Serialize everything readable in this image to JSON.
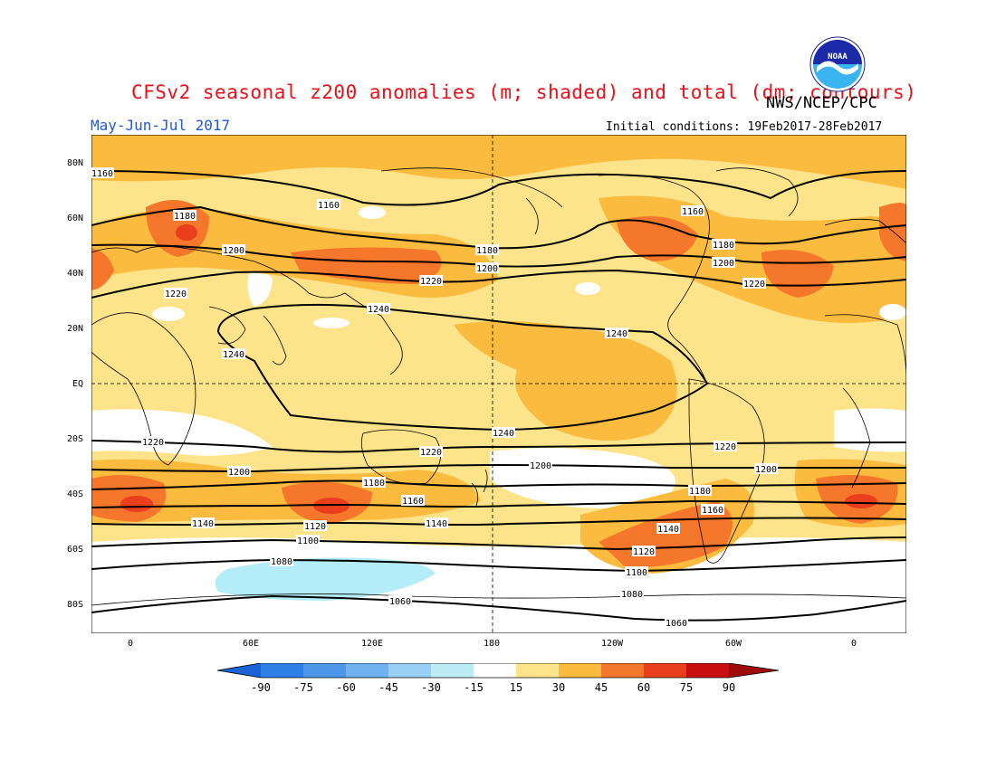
{
  "header": {
    "title": "CFSv2 seasonal z200 anomalies (m; shaded) and total (dm; contours)",
    "agency": "NWS/NCEP/CPC",
    "period": "May-Jun-Jul 2017",
    "initial_conditions": "Initial conditions: 19Feb2017-28Feb2017",
    "logo_text": "NOAA"
  },
  "map": {
    "lat_labels": [
      "80N",
      "60N",
      "40N",
      "20N",
      "EQ",
      "20S",
      "40S",
      "60S",
      "80S"
    ],
    "lon_labels": [
      "0",
      "60E",
      "120E",
      "180",
      "120W",
      "60W",
      "0"
    ],
    "contour_labels": [
      {
        "text": "1160"
      },
      {
        "text": "1160"
      },
      {
        "text": "1160"
      },
      {
        "text": "1180"
      },
      {
        "text": "1180"
      },
      {
        "text": "1180"
      },
      {
        "text": "1200"
      },
      {
        "text": "1200"
      },
      {
        "text": "1200"
      },
      {
        "text": "1220"
      },
      {
        "text": "1220"
      },
      {
        "text": "1220"
      },
      {
        "text": "1240"
      },
      {
        "text": "1240"
      },
      {
        "text": "1240"
      },
      {
        "text": "1240"
      },
      {
        "text": "1220"
      },
      {
        "text": "1220"
      },
      {
        "text": "1220"
      },
      {
        "text": "1200"
      },
      {
        "text": "1200"
      },
      {
        "text": "1200"
      },
      {
        "text": "1180"
      },
      {
        "text": "1180"
      },
      {
        "text": "1160"
      },
      {
        "text": "1160"
      },
      {
        "text": "1140"
      },
      {
        "text": "1140"
      },
      {
        "text": "1140"
      },
      {
        "text": "1120"
      },
      {
        "text": "1120"
      },
      {
        "text": "1100"
      },
      {
        "text": "1100"
      },
      {
        "text": "1080"
      },
      {
        "text": "1080"
      },
      {
        "text": "1060"
      },
      {
        "text": "1060"
      }
    ],
    "colors": {
      "c15_30": "#fde38a",
      "c30_45": "#fbbb3f",
      "c45_60": "#f4772b",
      "c60_75": "#ea3f1d",
      "cm15_m30": "#b4ecf7",
      "contour": "#000000",
      "coast": "#000000"
    }
  },
  "colorbar": {
    "labels": [
      "-90",
      "-75",
      "-60",
      "-45",
      "-30",
      "-15",
      "15",
      "30",
      "45",
      "60",
      "75",
      "90"
    ],
    "colors": [
      "#1b63d6",
      "#2f80e6",
      "#4c97ea",
      "#6fb2ef",
      "#98cff4",
      "#bdebf6",
      "#ffffff",
      "#fde38a",
      "#fbbb3f",
      "#f4772b",
      "#ea3f1d",
      "#c80f10",
      "#9e0b0b"
    ]
  }
}
